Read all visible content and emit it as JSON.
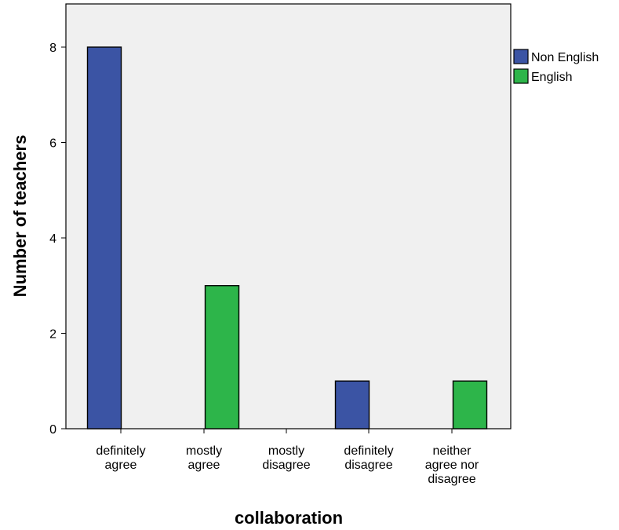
{
  "chart_data": {
    "type": "bar",
    "xlabel": "collaboration",
    "ylabel": "Number of teachers",
    "categories": [
      [
        "definitely",
        "agree"
      ],
      [
        "mostly",
        "agree"
      ],
      [
        "mostly",
        "disagree"
      ],
      [
        "definitely",
        "disagree"
      ],
      [
        "neither",
        "agree nor",
        "disagree"
      ]
    ],
    "series": [
      {
        "name": "Non English",
        "color": "#3b54a4",
        "values": [
          8,
          null,
          null,
          1,
          null
        ]
      },
      {
        "name": "English",
        "color": "#2db54a",
        "values": [
          null,
          3,
          null,
          null,
          1
        ]
      }
    ],
    "ylim": [
      0,
      9
    ],
    "yticks": [
      0,
      2,
      4,
      6,
      8
    ],
    "grid": false,
    "plot_background": "#f0f0f0",
    "legend_position": "right"
  }
}
